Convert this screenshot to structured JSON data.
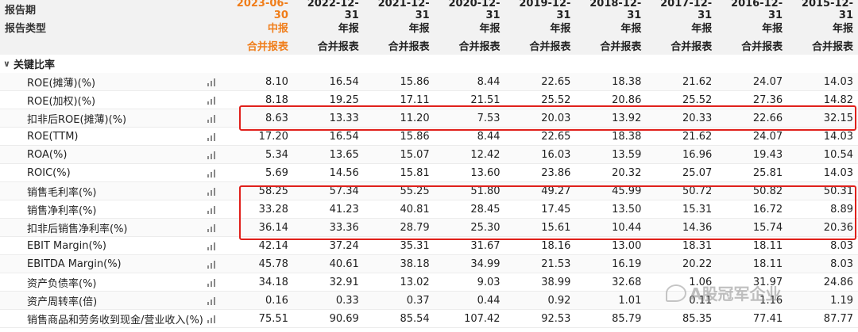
{
  "header": {
    "period_label": "报告期",
    "type_label": "报告类型",
    "columns": [
      {
        "date": "2023-06-30",
        "period": "中报",
        "type": "合并报表"
      },
      {
        "date": "2022-12-31",
        "period": "年报",
        "type": "合并报表"
      },
      {
        "date": "2021-12-31",
        "period": "年报",
        "type": "合并报表"
      },
      {
        "date": "2020-12-31",
        "period": "年报",
        "type": "合并报表"
      },
      {
        "date": "2019-12-31",
        "period": "年报",
        "type": "合并报表"
      },
      {
        "date": "2018-12-31",
        "period": "年报",
        "type": "合并报表"
      },
      {
        "date": "2017-12-31",
        "period": "年报",
        "type": "合并报表"
      },
      {
        "date": "2016-12-31",
        "period": "年报",
        "type": "合并报表"
      },
      {
        "date": "2015-12-31",
        "period": "年报",
        "type": "合并报表"
      }
    ]
  },
  "section": {
    "label": "关键比率",
    "icon": "chevron-down-icon"
  },
  "rows": [
    {
      "label": "ROE(摊薄)(%)",
      "values": [
        "8.10",
        "16.54",
        "15.86",
        "8.44",
        "22.65",
        "18.38",
        "21.62",
        "24.07",
        "14.03"
      ]
    },
    {
      "label": "ROE(加权)(%)",
      "values": [
        "8.18",
        "19.25",
        "17.11",
        "21.51",
        "25.52",
        "20.86",
        "25.52",
        "27.36",
        "14.82"
      ]
    },
    {
      "label": "扣非后ROE(摊薄)(%)",
      "values": [
        "8.63",
        "13.33",
        "11.20",
        "7.53",
        "20.03",
        "13.92",
        "20.33",
        "22.66",
        "32.15"
      ]
    },
    {
      "label": "ROE(TTM)",
      "values": [
        "17.20",
        "16.54",
        "15.86",
        "8.44",
        "22.65",
        "18.38",
        "21.62",
        "24.07",
        "14.03"
      ]
    },
    {
      "label": "ROA(%)",
      "values": [
        "5.34",
        "13.65",
        "15.07",
        "12.42",
        "16.03",
        "13.59",
        "16.96",
        "19.43",
        "10.54"
      ]
    },
    {
      "label": "ROIC(%)",
      "values": [
        "5.69",
        "14.56",
        "15.81",
        "13.60",
        "23.86",
        "20.32",
        "25.07",
        "25.81",
        "14.03"
      ]
    },
    {
      "label": "销售毛利率(%)",
      "values": [
        "58.25",
        "57.34",
        "55.25",
        "51.80",
        "49.27",
        "45.99",
        "50.72",
        "50.82",
        "50.31"
      ]
    },
    {
      "label": "销售净利率(%)",
      "values": [
        "33.28",
        "41.23",
        "40.81",
        "28.45",
        "17.45",
        "13.50",
        "15.31",
        "16.72",
        "8.89"
      ]
    },
    {
      "label": "扣非后销售净利率(%)",
      "values": [
        "36.14",
        "33.36",
        "28.79",
        "25.30",
        "15.61",
        "10.44",
        "14.36",
        "15.74",
        "20.36"
      ]
    },
    {
      "label": "EBIT Margin(%)",
      "values": [
        "42.14",
        "37.24",
        "35.31",
        "31.67",
        "18.16",
        "13.00",
        "18.31",
        "18.11",
        "8.03"
      ]
    },
    {
      "label": "EBITDA Margin(%)",
      "values": [
        "45.78",
        "40.61",
        "38.18",
        "34.99",
        "21.53",
        "16.19",
        "20.22",
        "18.11",
        "8.03"
      ]
    },
    {
      "label": "资产负债率(%)",
      "values": [
        "34.18",
        "32.91",
        "13.02",
        "9.03",
        "38.99",
        "32.68",
        "1.06",
        "31.97",
        "24.86"
      ]
    },
    {
      "label": "资产周转率(倍)",
      "values": [
        "0.16",
        "0.33",
        "0.37",
        "0.44",
        "0.92",
        "1.01",
        "0.11",
        "1.16",
        "1.19"
      ]
    },
    {
      "label": "销售商品和劳务收到现金/营业收入(%)",
      "values": [
        "75.51",
        "90.69",
        "85.54",
        "107.42",
        "92.53",
        "85.79",
        "85.35",
        "77.41",
        "87.77"
      ]
    }
  ],
  "watermark": {
    "text": "A股冠军企业",
    "icon": "wechat-icon"
  },
  "colors": {
    "active_header": "#f07d19",
    "highlight_box": "#e0201b"
  }
}
